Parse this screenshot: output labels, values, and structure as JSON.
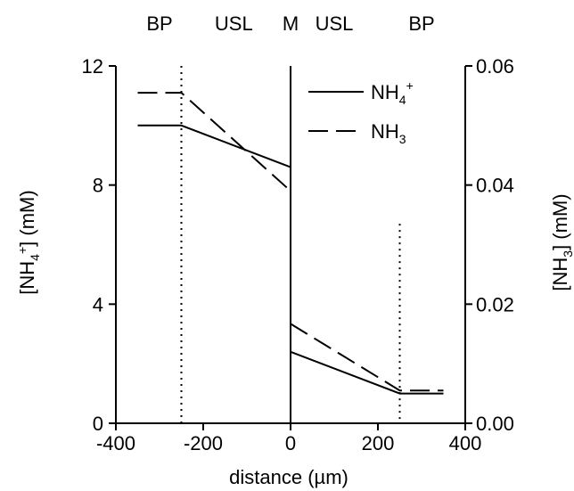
{
  "chart_data": {
    "type": "line",
    "title": "",
    "xlabel": "distance (µm)",
    "ylabel_left": {
      "text": "[NH",
      "sub": "4",
      "sup": "+",
      "tail": "] (mM)"
    },
    "ylabel_right": {
      "text": "[NH",
      "sub": "3",
      "tail": "] (mM)"
    },
    "xlim": [
      -400,
      400
    ],
    "ylim_left": [
      0,
      12
    ],
    "ylim_right": [
      0,
      0.06
    ],
    "x_ticks": [
      -400,
      -200,
      0,
      200,
      400
    ],
    "x_tick_labels": [
      "-400",
      "-200",
      "0",
      "200",
      "400"
    ],
    "y_left_ticks": [
      0,
      4,
      8,
      12
    ],
    "y_left_tick_labels": [
      "0",
      "4",
      "8",
      "12"
    ],
    "y_right_ticks": [
      0,
      0.02,
      0.04,
      0.06
    ],
    "y_right_tick_labels": [
      "0.00",
      "0.02",
      "0.04",
      "0.06"
    ],
    "regions": [
      {
        "label": "BP",
        "x": -300
      },
      {
        "label": "USL",
        "x": -130
      },
      {
        "label": "M",
        "x": 0
      },
      {
        "label": "USL",
        "x": 100
      },
      {
        "label": "BP",
        "x": 300
      }
    ],
    "boundaries": [
      {
        "x": -250,
        "style": "dotted",
        "y_from": 0,
        "y_to": 12
      },
      {
        "x": 0,
        "style": "solid",
        "y_from": 0,
        "y_to": 12
      },
      {
        "x": 250,
        "style": "dotted",
        "y_from": 0,
        "y_to": 6.7
      }
    ],
    "series": [
      {
        "name": "NH4+",
        "legend_base": "NH",
        "legend_sub": "4",
        "legend_sup": "+",
        "axis": "left",
        "dash": "solid",
        "segments": [
          {
            "x": [
              -350,
              -250,
              0
            ],
            "y": [
              10.0,
              10.0,
              8.6
            ]
          },
          {
            "x": [
              0,
              250,
              350
            ],
            "y": [
              2.4,
              1.0,
              1.0
            ]
          }
        ]
      },
      {
        "name": "NH3",
        "legend_base": "NH",
        "legend_sub": "3",
        "legend_sup": "",
        "axis": "right",
        "dash": "dashed",
        "segments": [
          {
            "x": [
              -350,
              -250,
              0
            ],
            "y": [
              0.0555,
              0.0555,
              0.039
            ]
          },
          {
            "x": [
              0,
              250,
              350
            ],
            "y": [
              0.0167,
              0.0055,
              0.0055
            ]
          }
        ]
      }
    ],
    "legend_position": "top-right",
    "grid": false
  }
}
